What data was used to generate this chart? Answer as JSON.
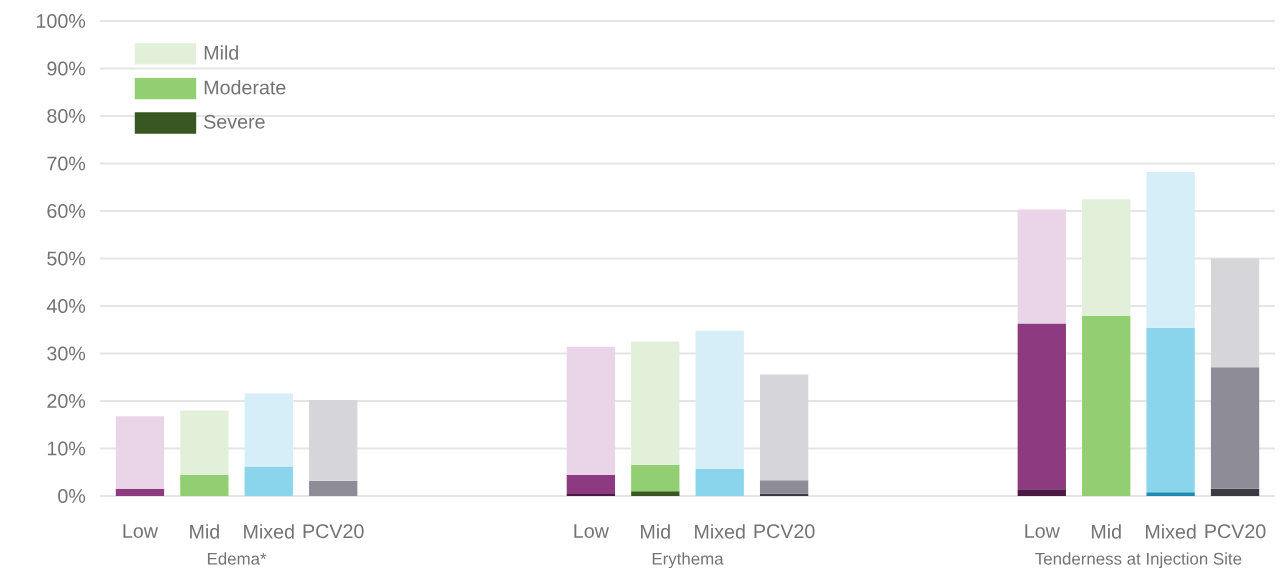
{
  "chart_data": {
    "type": "bar",
    "stacked": true,
    "categories": [
      "Low",
      "Mid",
      "Mixed",
      "PCV20",
      null,
      null,
      null,
      "Low",
      "Mid",
      "Mixed",
      "PCV20",
      null,
      null,
      null,
      "Low",
      "Mid",
      "Mixed",
      "PCV20"
    ],
    "series": [
      {
        "name": "Severe",
        "color": "#385723",
        "colors": [
          "#4a1a42",
          "#385723",
          "#1f8bb4",
          "#3a3a40",
          null,
          null,
          null,
          "#4a1a42",
          "#385723",
          "#1f8bb4",
          "#3a3a40",
          null,
          null,
          null,
          "#4a1a42",
          "#385723",
          "#1f8bb4",
          "#3a3a40"
        ],
        "values": [
          null,
          null,
          null,
          null,
          null,
          null,
          null,
          0.4,
          1.0,
          null,
          0.5,
          null,
          null,
          null,
          1.4,
          null,
          0.8,
          1.5
        ]
      },
      {
        "name": "Moderate",
        "color": "#92cf72",
        "colors": [
          "#8e3a80",
          "#92cf72",
          "#8ad5ec",
          "#8e8d97",
          null,
          null,
          null,
          "#8e3a80",
          "#92cf72",
          "#8ad5ec",
          "#8e8d97",
          null,
          null,
          null,
          "#8e3a80",
          "#92cf72",
          "#8ad5ec",
          "#8e8d97"
        ],
        "values": [
          1.5,
          4.5,
          6.2,
          3.2,
          null,
          null,
          null,
          4.0,
          5.6,
          5.7,
          2.8,
          null,
          null,
          null,
          34.9,
          37.9,
          34.6,
          25.6
        ]
      },
      {
        "name": "Mild",
        "color": "#e2f0d9",
        "colors": [
          "#ead5e8",
          "#e2f0d9",
          "#d6eef7",
          "#d6d5da",
          null,
          null,
          null,
          "#ead5e8",
          "#e2f0d9",
          "#d6eef7",
          "#d6d5da",
          null,
          null,
          null,
          "#ead5e8",
          "#e2f0d9",
          "#d6eef7",
          "#d6d5da"
        ],
        "values": [
          15.3,
          13.5,
          15.4,
          17.0,
          null,
          null,
          null,
          27.0,
          25.9,
          29.1,
          22.3,
          null,
          null,
          null,
          24.0,
          24.6,
          32.8,
          22.9
        ]
      }
    ],
    "ylim": [
      0,
      100
    ],
    "yticks": [
      {
        "value": 0,
        "label": "0%"
      },
      {
        "value": 10,
        "label": "10%"
      },
      {
        "value": 20,
        "label": "20%"
      },
      {
        "value": 30,
        "label": "30%"
      },
      {
        "value": 40,
        "label": "40%"
      },
      {
        "value": 50,
        "label": "50%"
      },
      {
        "value": 60,
        "label": "60%"
      },
      {
        "value": 70,
        "label": "70%"
      },
      {
        "value": 80,
        "label": "80%"
      },
      {
        "value": 90,
        "label": "90%"
      },
      {
        "value": 100,
        "label": "100%"
      }
    ],
    "grid": "y",
    "legend": "top left",
    "annotations": [
      "Edema*",
      "Erythema",
      "Tenderness at Injection Site"
    ]
  }
}
